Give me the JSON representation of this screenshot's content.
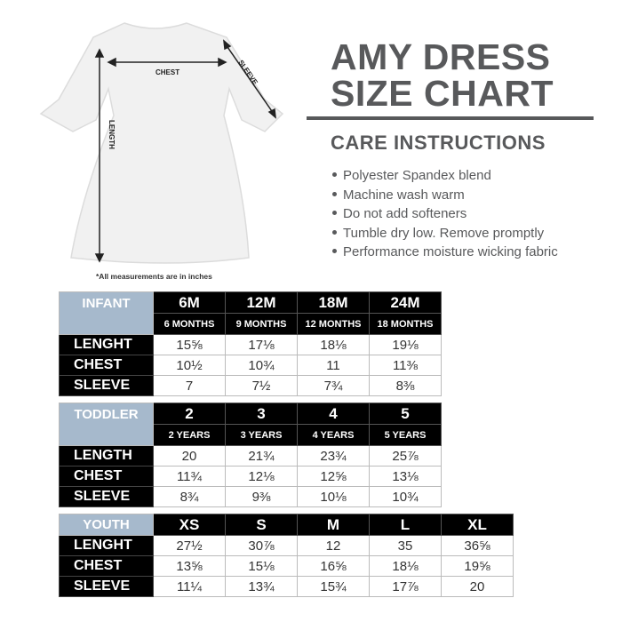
{
  "title": {
    "line1": "AMY DRESS",
    "line2": "SIZE CHART"
  },
  "care": {
    "heading": "CARE INSTRUCTIONS",
    "items": [
      "Polyester Spandex blend",
      "Machine wash warm",
      "Do not add softeners",
      "Tumble dry low. Remove promptly",
      "Performance moisture wicking fabric"
    ]
  },
  "diagram": {
    "chest": "CHEST",
    "sleeve": "SLEEVE",
    "length": "LENGTH",
    "garment_color": "#f1f1f1"
  },
  "note": "*All measurements are in inches",
  "colors": {
    "category_header": "#a6b9cc",
    "header": "#000000",
    "text": "#58595b"
  },
  "infant": {
    "category": "INFANT",
    "sizes": [
      "6M",
      "12M",
      "18M",
      "24M"
    ],
    "ages": [
      "6 MONTHS",
      "9 MONTHS",
      "12 MONTHS",
      "18 MONTHS"
    ],
    "rows": [
      {
        "label": "LENGHT",
        "values": [
          "15⅝",
          "17⅛",
          "18⅛",
          "19⅛"
        ]
      },
      {
        "label": "CHEST",
        "values": [
          "10½",
          "10¾",
          "11",
          "11⅜"
        ]
      },
      {
        "label": "SLEEVE",
        "values": [
          "7",
          "7½",
          "7¾",
          "8⅜"
        ]
      }
    ]
  },
  "toddler": {
    "category": "TODDLER",
    "sizes": [
      "2",
      "3",
      "4",
      "5"
    ],
    "ages": [
      "2 YEARS",
      "3 YEARS",
      "4 YEARS",
      "5 YEARS"
    ],
    "rows": [
      {
        "label": "LENGTH",
        "values": [
          "20",
          "21¾",
          "23¾",
          "25⅞"
        ]
      },
      {
        "label": "CHEST",
        "values": [
          "11¾",
          "12⅛",
          "12⅝",
          "13⅛"
        ]
      },
      {
        "label": "SLEEVE",
        "values": [
          "8¾",
          "9⅜",
          "10⅛",
          "10¾"
        ]
      }
    ]
  },
  "youth": {
    "category": "YOUTH",
    "sizes": [
      "XS",
      "S",
      "M",
      "L",
      "XL"
    ],
    "rows": [
      {
        "label": "LENGHT",
        "values": [
          "27½",
          "30⅞",
          "12",
          "35",
          "36⅝"
        ]
      },
      {
        "label": "CHEST",
        "values": [
          "13⅝",
          "15⅛",
          "16⅝",
          "18⅛",
          "19⅝"
        ]
      },
      {
        "label": "SLEEVE",
        "values": [
          "11¼",
          "13¾",
          "15¾",
          "17⅞",
          "20"
        ]
      }
    ]
  }
}
